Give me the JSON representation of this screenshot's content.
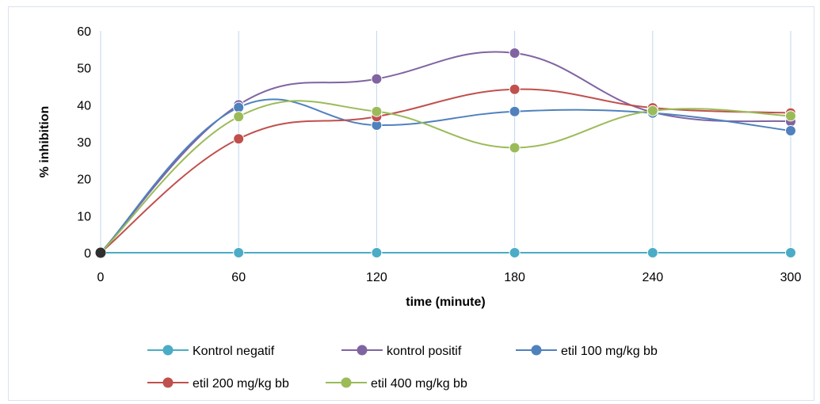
{
  "chart_data": {
    "type": "line",
    "title": "",
    "xlabel": "time (minute)",
    "ylabel": "% inhibition",
    "x": [
      0,
      60,
      120,
      180,
      240,
      300
    ],
    "xlim": [
      0,
      300
    ],
    "ylim": [
      0,
      60
    ],
    "x_ticks": [
      "0",
      "60",
      "120",
      "180",
      "240",
      "300"
    ],
    "y_ticks": [
      "0",
      "10",
      "20",
      "30",
      "40",
      "50",
      "60"
    ],
    "grid": "vertical",
    "smooth": true,
    "legend": "bottom",
    "series": [
      {
        "name": "Kontrol negatif",
        "color": "#4bacc6",
        "values": [
          0,
          0,
          0,
          0,
          0,
          0
        ]
      },
      {
        "name": "kontrol positif",
        "color": "#8064a2",
        "values": [
          0,
          40,
          47,
          54,
          38,
          35.5
        ]
      },
      {
        "name": "etil 100 mg/kg bb",
        "color": "#4f81bd",
        "values": [
          0,
          39.3,
          34.5,
          38.2,
          37.8,
          33
        ]
      },
      {
        "name": "etil 200 mg/kg bb",
        "color": "#c0504d",
        "values": [
          0,
          30.8,
          36.8,
          44.2,
          39.2,
          37.8
        ]
      },
      {
        "name": "etil 400 mg/kg bb",
        "color": "#9bbb59",
        "values": [
          0,
          36.8,
          38.2,
          28.4,
          38.4,
          37
        ]
      }
    ]
  }
}
